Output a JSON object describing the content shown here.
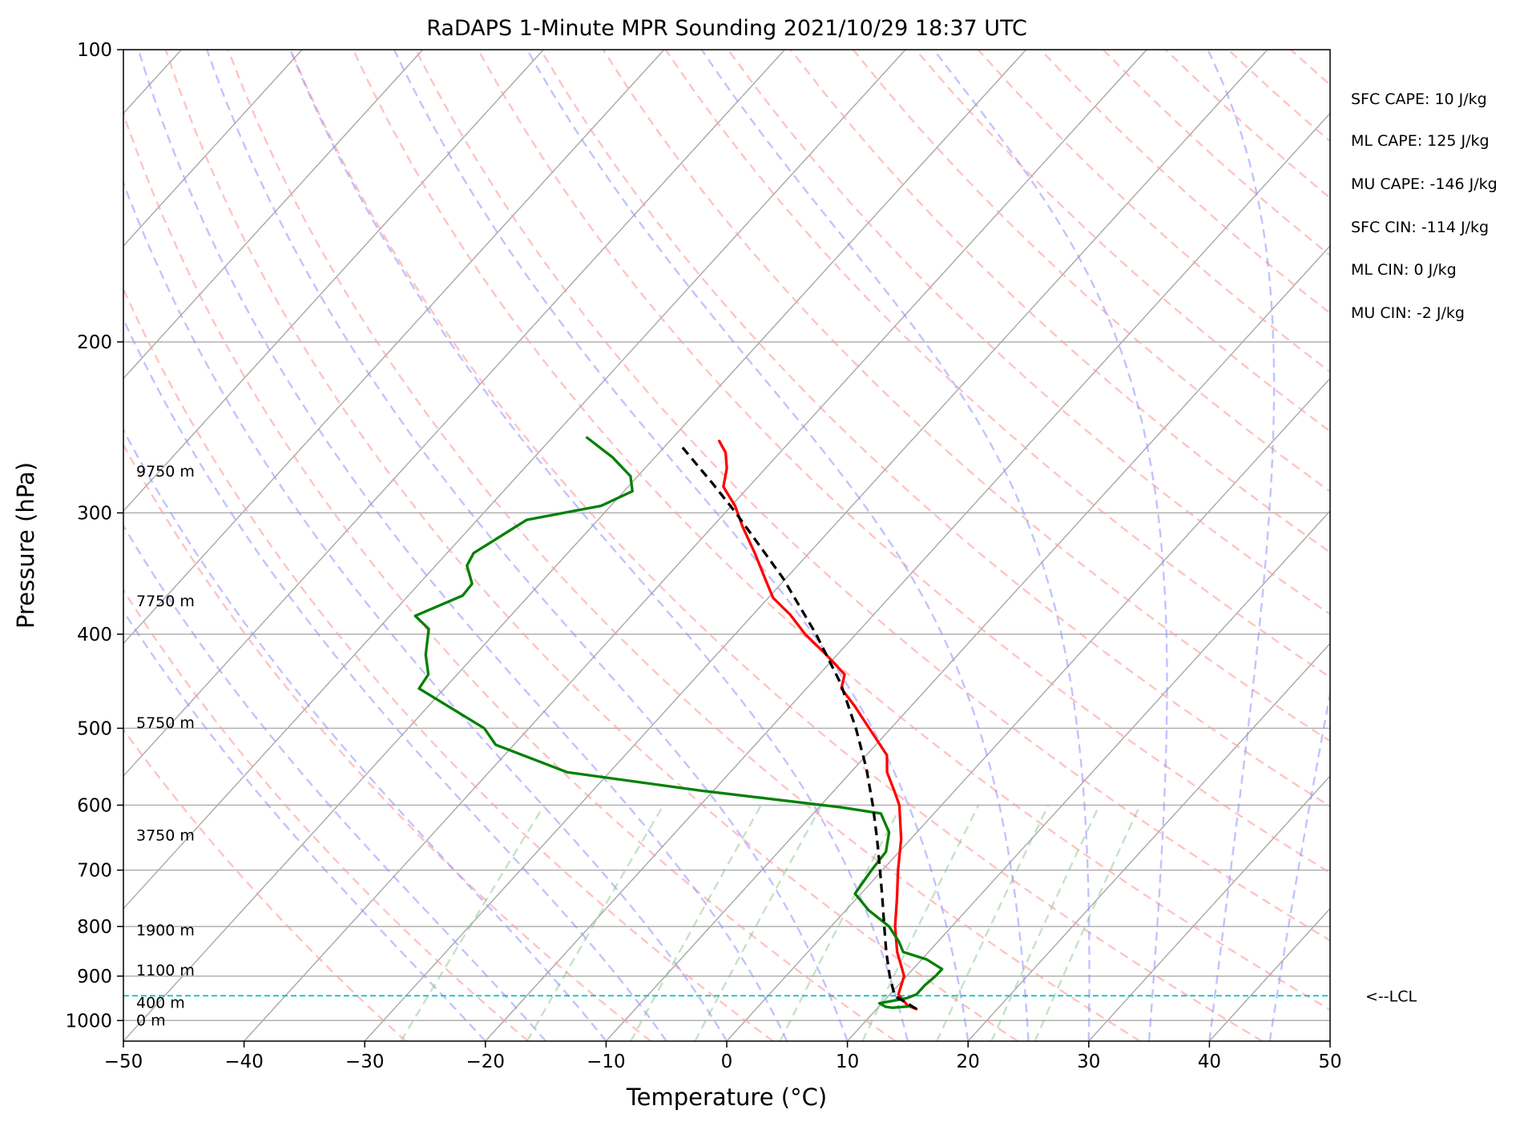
{
  "chart_data": {
    "type": "line",
    "title": "RaDAPS 1-Minute MPR Sounding 2021/10/29 18:37 UTC",
    "xlabel": "Temperature (°C)",
    "ylabel": "Pressure (hPa)",
    "xlim": [
      -50,
      50
    ],
    "ylim": [
      1050,
      100
    ],
    "y_scale": "log",
    "skew": "skew-T",
    "grid": true,
    "x_ticks": [
      "−50",
      "−40",
      "−30",
      "−20",
      "−10",
      "0",
      "10",
      "20",
      "30",
      "40",
      "50"
    ],
    "x_tick_values": [
      -50,
      -40,
      -30,
      -20,
      -10,
      0,
      10,
      20,
      30,
      40,
      50
    ],
    "y_ticks": [
      "100",
      "200",
      "300",
      "400",
      "500",
      "600",
      "700",
      "800",
      "900",
      "1000"
    ],
    "y_tick_values": [
      100,
      200,
      300,
      400,
      500,
      600,
      700,
      800,
      900,
      1000
    ],
    "height_labels": [
      {
        "text": "9750 m",
        "p": 272
      },
      {
        "text": "7750 m",
        "p": 370
      },
      {
        "text": "5750 m",
        "p": 494
      },
      {
        "text": "3750 m",
        "p": 645
      },
      {
        "text": "1900 m",
        "p": 808
      },
      {
        "text": "1100 m",
        "p": 888
      },
      {
        "text": "400 m",
        "p": 959
      },
      {
        "text": "0 m",
        "p": 1000
      }
    ],
    "lcl": {
      "label": "<--LCL",
      "p": 943
    },
    "stats": [
      "SFC CAPE: 10 J/kg",
      "ML CAPE: 125 J/kg",
      "MU CAPE: -146 J/kg",
      "SFC CIN: -114 J/kg",
      "ML CIN: 0 J/kg",
      "MU CIN: -2 J/kg"
    ],
    "series": [
      {
        "color": "#ff0000",
        "points": [
          {
            "p": 973,
            "t": 13.3
          },
          {
            "p": 965,
            "t": 12.3
          },
          {
            "p": 940,
            "t": 10.7
          },
          {
            "p": 900,
            "t": 9.8
          },
          {
            "p": 850,
            "t": 7.4
          },
          {
            "p": 800,
            "t": 5.3
          },
          {
            "p": 750,
            "t": 3.4
          },
          {
            "p": 700,
            "t": 1.3
          },
          {
            "p": 650,
            "t": -0.8
          },
          {
            "p": 600,
            "t": -3.5
          },
          {
            "p": 580,
            "t": -5.0
          },
          {
            "p": 555,
            "t": -7.0
          },
          {
            "p": 533,
            "t": -8.3
          },
          {
            "p": 500,
            "t": -11.8
          },
          {
            "p": 475,
            "t": -14.6
          },
          {
            "p": 455,
            "t": -17.1
          },
          {
            "p": 440,
            "t": -17.9
          },
          {
            "p": 420,
            "t": -20.9
          },
          {
            "p": 400,
            "t": -24.2
          },
          {
            "p": 382,
            "t": -26.9
          },
          {
            "p": 367,
            "t": -29.6
          },
          {
            "p": 350,
            "t": -31.8
          },
          {
            "p": 330,
            "t": -34.5
          },
          {
            "p": 310,
            "t": -37.5
          },
          {
            "p": 295,
            "t": -39.7
          },
          {
            "p": 282,
            "t": -42.1
          },
          {
            "p": 270,
            "t": -43.2
          },
          {
            "p": 260,
            "t": -44.5
          },
          {
            "p": 253,
            "t": -45.9
          }
        ]
      },
      {
        "color": "#008000",
        "points": [
          {
            "p": 967,
            "t": 12.5
          },
          {
            "p": 970,
            "t": 11.2
          },
          {
            "p": 968,
            "t": 10.6
          },
          {
            "p": 960,
            "t": 9.8
          },
          {
            "p": 955,
            "t": 10.6
          },
          {
            "p": 948,
            "t": 11.7
          },
          {
            "p": 940,
            "t": 12.2
          },
          {
            "p": 920,
            "t": 12.2
          },
          {
            "p": 900,
            "t": 12.4
          },
          {
            "p": 885,
            "t": 12.4
          },
          {
            "p": 865,
            "t": 10.4
          },
          {
            "p": 850,
            "t": 7.9
          },
          {
            "p": 830,
            "t": 6.8
          },
          {
            "p": 800,
            "t": 4.8
          },
          {
            "p": 770,
            "t": 1.9
          },
          {
            "p": 740,
            "t": -0.5
          },
          {
            "p": 700,
            "t": -0.9
          },
          {
            "p": 670,
            "t": -1.1
          },
          {
            "p": 640,
            "t": -2.3
          },
          {
            "p": 612,
            "t": -4.4
          },
          {
            "p": 603,
            "t": -8.2
          },
          {
            "p": 580,
            "t": -20.9
          },
          {
            "p": 555,
            "t": -33.5
          },
          {
            "p": 520,
            "t": -41.5
          },
          {
            "p": 500,
            "t": -43.7
          },
          {
            "p": 455,
            "t": -52.1
          },
          {
            "p": 440,
            "t": -52.4
          },
          {
            "p": 420,
            "t": -54.1
          },
          {
            "p": 395,
            "t": -55.8
          },
          {
            "p": 383,
            "t": -57.9
          },
          {
            "p": 365,
            "t": -55.5
          },
          {
            "p": 355,
            "t": -55.6
          },
          {
            "p": 340,
            "t": -57.4
          },
          {
            "p": 330,
            "t": -57.8
          },
          {
            "p": 305,
            "t": -55.9
          },
          {
            "p": 295,
            "t": -50.8
          },
          {
            "p": 285,
            "t": -49.3
          },
          {
            "p": 275,
            "t": -50.6
          },
          {
            "p": 263,
            "t": -53.5
          },
          {
            "p": 251,
            "t": -57.1
          }
        ]
      },
      {
        "color": "#000000",
        "dashed": true,
        "points": [
          {
            "p": 973,
            "t": 13.3
          },
          {
            "p": 943,
            "t": 10.5
          },
          {
            "p": 900,
            "t": 8.6
          },
          {
            "p": 850,
            "t": 6.5
          },
          {
            "p": 800,
            "t": 4.4
          },
          {
            "p": 750,
            "t": 2.2
          },
          {
            "p": 700,
            "t": -0.2
          },
          {
            "p": 650,
            "t": -2.8
          },
          {
            "p": 600,
            "t": -5.7
          },
          {
            "p": 550,
            "t": -9.0
          },
          {
            "p": 500,
            "t": -12.9
          },
          {
            "p": 450,
            "t": -17.5
          },
          {
            "p": 400,
            "t": -23.3
          },
          {
            "p": 350,
            "t": -30.3
          },
          {
            "p": 300,
            "t": -39.1
          },
          {
            "p": 280,
            "t": -43.2
          },
          {
            "p": 255,
            "t": -48.9
          }
        ]
      }
    ]
  }
}
